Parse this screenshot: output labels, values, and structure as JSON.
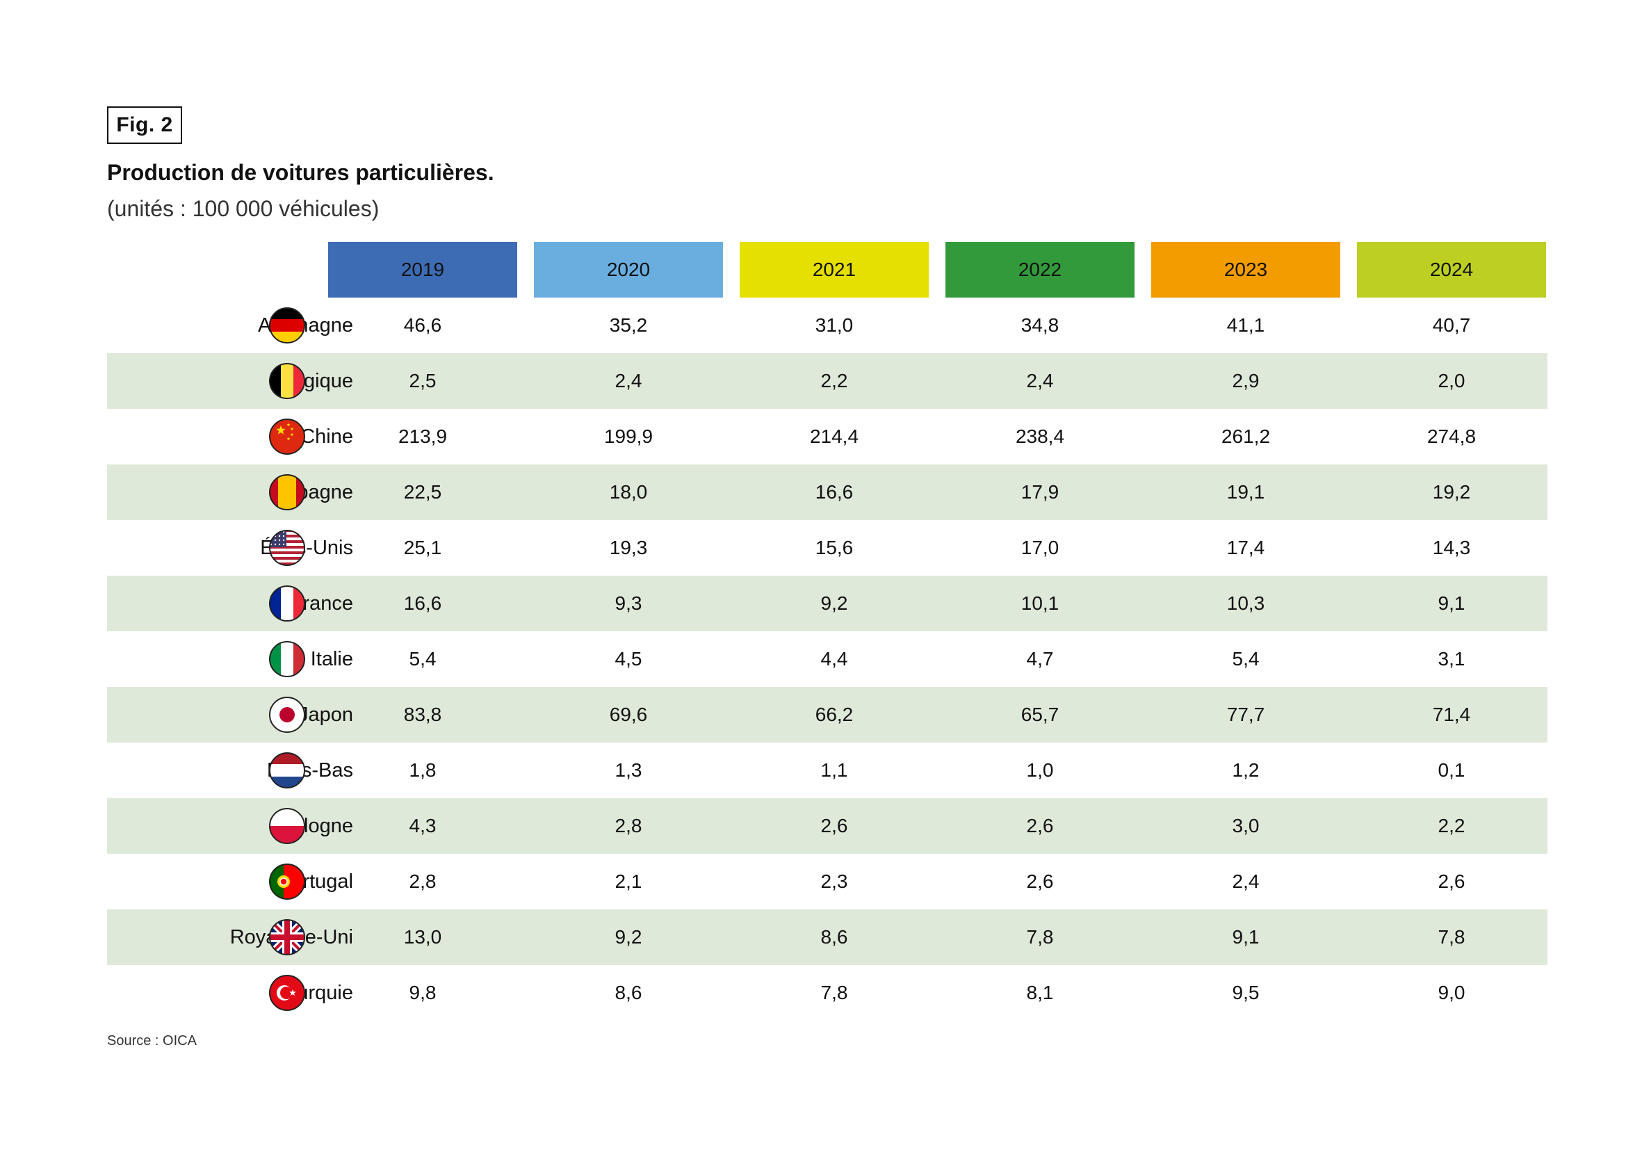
{
  "fig_label": "Fig. 2",
  "title": "Production de voitures particulières.",
  "subtitle": "(unités : 100 000 véhicules)",
  "source": "Source : OICA",
  "year_colors": [
    "#3d6cb5",
    "#6aaee0",
    "#e6e000",
    "#339a3b",
    "#f39c00",
    "#bccf22"
  ],
  "row_alt_color": "#dfe9d9",
  "chart_data": {
    "type": "table",
    "title": "Production de voitures particulières.",
    "subtitle": "(unités : 100 000 véhicules)",
    "columns": [
      "2019",
      "2020",
      "2021",
      "2022",
      "2023",
      "2024"
    ],
    "rows": [
      {
        "country": "Allemagne",
        "flag": "germany-flag-icon",
        "values": [
          "46,6",
          "35,2",
          "31,0",
          "34,8",
          "41,1",
          "40,7"
        ]
      },
      {
        "country": "Belgique",
        "flag": "belgium-flag-icon",
        "values": [
          "2,5",
          "2,4",
          "2,2",
          "2,4",
          "2,9",
          "2,0"
        ]
      },
      {
        "country": "Chine",
        "flag": "china-flag-icon",
        "values": [
          "213,9",
          "199,9",
          "214,4",
          "238,4",
          "261,2",
          "274,8"
        ]
      },
      {
        "country": "Espagne",
        "flag": "spain-flag-icon",
        "values": [
          "22,5",
          "18,0",
          "16,6",
          "17,9",
          "19,1",
          "19,2"
        ]
      },
      {
        "country": "États-Unis",
        "flag": "usa-flag-icon",
        "values": [
          "25,1",
          "19,3",
          "15,6",
          "17,0",
          "17,4",
          "14,3"
        ]
      },
      {
        "country": "France",
        "flag": "france-flag-icon",
        "values": [
          "16,6",
          "9,3",
          "9,2",
          "10,1",
          "10,3",
          "9,1"
        ]
      },
      {
        "country": "Italie",
        "flag": "italy-flag-icon",
        "values": [
          "5,4",
          "4,5",
          "4,4",
          "4,7",
          "5,4",
          "3,1"
        ]
      },
      {
        "country": "Japon",
        "flag": "japan-flag-icon",
        "values": [
          "83,8",
          "69,6",
          "66,2",
          "65,7",
          "77,7",
          "71,4"
        ]
      },
      {
        "country": "Pays-Bas",
        "flag": "netherlands-flag-icon",
        "values": [
          "1,8",
          "1,3",
          "1,1",
          "1,0",
          "1,2",
          "0,1"
        ]
      },
      {
        "country": "Pologne",
        "flag": "poland-flag-icon",
        "values": [
          "4,3",
          "2,8",
          "2,6",
          "2,6",
          "3,0",
          "2,2"
        ]
      },
      {
        "country": "Portugal",
        "flag": "portugal-flag-icon",
        "values": [
          "2,8",
          "2,1",
          "2,3",
          "2,6",
          "2,4",
          "2,6"
        ]
      },
      {
        "country": "Royaume-Uni",
        "flag": "uk-flag-icon",
        "values": [
          "13,0",
          "9,2",
          "8,6",
          "7,8",
          "9,1",
          "7,8"
        ]
      },
      {
        "country": "Turquie",
        "flag": "turkey-flag-icon",
        "values": [
          "9,8",
          "8,6",
          "7,8",
          "8,1",
          "9,5",
          "9,0"
        ]
      }
    ]
  }
}
